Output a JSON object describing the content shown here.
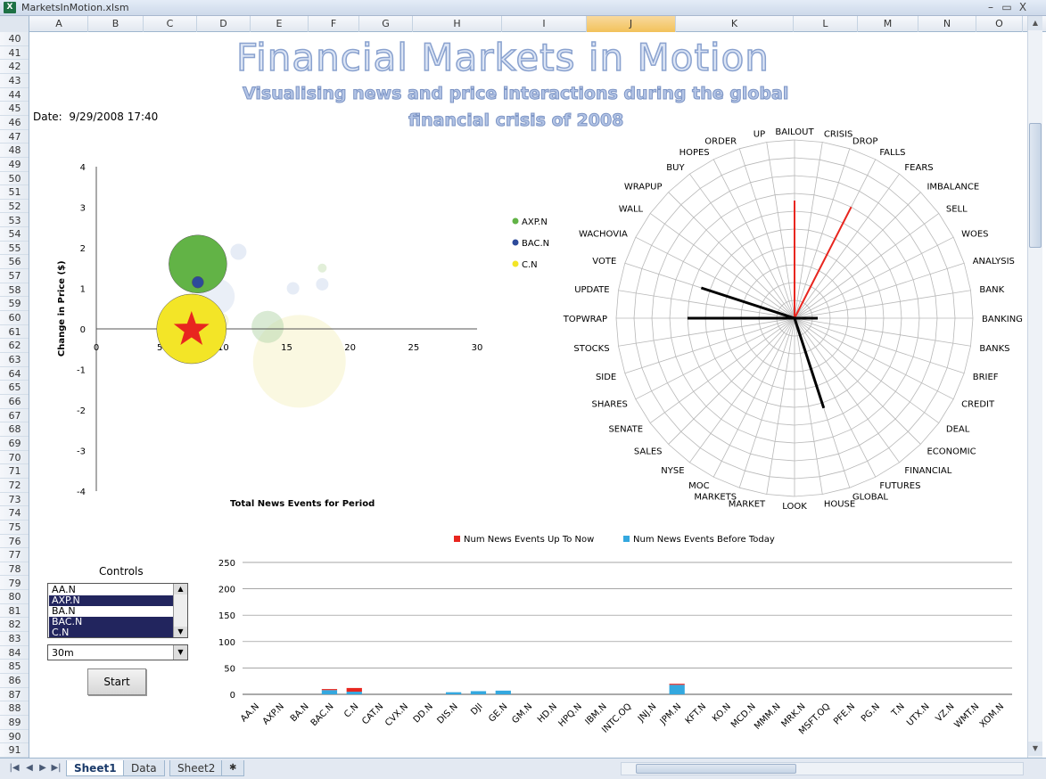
{
  "window": {
    "title": "MarketsInMotion.xlsm",
    "app_icon": "excel-icon",
    "minimize_glyph": "–",
    "restore_glyph": "▭",
    "close_glyph": "X"
  },
  "columns": [
    "A",
    "B",
    "C",
    "D",
    "E",
    "F",
    "G",
    "H",
    "I",
    "J",
    "K",
    "L",
    "M",
    "N",
    "O"
  ],
  "selected_column": "J",
  "rows": [
    "40",
    "41",
    "42",
    "43",
    "44",
    "45",
    "46",
    "47",
    "48",
    "49",
    "50",
    "51",
    "52",
    "53",
    "54",
    "55",
    "56",
    "57",
    "58",
    "59",
    "60",
    "61",
    "62",
    "63",
    "64",
    "65",
    "66",
    "67",
    "68",
    "69",
    "70",
    "71",
    "72",
    "73",
    "74",
    "75",
    "76",
    "77",
    "78",
    "79",
    "80",
    "81",
    "82",
    "83",
    "84",
    "85",
    "86",
    "87",
    "88",
    "89",
    "90",
    "91"
  ],
  "dashboard": {
    "title": "Financial Markets in Motion",
    "subtitle_line1": "Visualising news and price interactions during the global",
    "subtitle_line2": "financial crisis of 2008",
    "date_label": "Date:",
    "date_value": "9/29/2008 17:40"
  },
  "controls": {
    "title": "Controls",
    "tickers": [
      {
        "label": "AA.N",
        "selected": false
      },
      {
        "label": "AXP.N",
        "selected": true
      },
      {
        "label": "BA.N",
        "selected": false
      },
      {
        "label": "BAC.N",
        "selected": true
      },
      {
        "label": "C.N",
        "selected": true
      }
    ],
    "period_value": "30m",
    "start_label": "Start"
  },
  "chart_data": [
    {
      "type": "scatter",
      "title": "",
      "xlabel": "Total News Events for Period",
      "ylabel": "Change in Price ($)",
      "xlim": [
        0,
        30
      ],
      "ylim": [
        -4,
        4
      ],
      "xticks": [
        "0",
        "5",
        "10",
        "15",
        "20",
        "25",
        "30"
      ],
      "yticks": [
        "4",
        "3",
        "2",
        "1",
        "0",
        "-1",
        "-2",
        "-3",
        "-4"
      ],
      "legend": [
        "AXP.N",
        "BAC.N",
        "C.N"
      ],
      "series": [
        {
          "name": "AXP.N",
          "color": "#62b346",
          "x": 8,
          "y": 1.6,
          "size": 25
        },
        {
          "name": "BAC.N",
          "color": "#2d4a9a",
          "x": 8,
          "y": 1.15,
          "size": 5
        },
        {
          "name": "C.N",
          "color": "#f3e527",
          "x": 7.5,
          "y": 0,
          "size": 30
        }
      ]
    },
    {
      "type": "radar",
      "categories": [
        "BAILOUT",
        "CRISIS",
        "DROP",
        "FALLS",
        "FEARS",
        "IMBALANCE",
        "SELL",
        "WOES",
        "ANALYSIS",
        "BANK",
        "BANKING",
        "BANKS",
        "BRIEF",
        "CREDIT",
        "DEAL",
        "ECONOMIC",
        "FINANCIAL",
        "FUTURES",
        "GLOBAL",
        "HOUSE",
        "LOOK",
        "MARKET",
        "MARKETS",
        "MOC",
        "NYSE",
        "SALES",
        "SENATE",
        "SHARES",
        "SIDE",
        "STOCKS",
        "TOPWRAP",
        "UPDATE",
        "VOTE",
        "WACHOVIA",
        "WALL",
        "WRAPUP",
        "BUY",
        "HOPES",
        "ORDER",
        "UP"
      ],
      "series": [
        {
          "name": "Num News Events Up To Now",
          "color": "#e8261f",
          "values": [
            0.66,
            0,
            0,
            0.7,
            0,
            0,
            0,
            0,
            0,
            0,
            0,
            0,
            0,
            0,
            0,
            0,
            0,
            0,
            0,
            0,
            0,
            0,
            0,
            0,
            0,
            0,
            0,
            0,
            0,
            0,
            0,
            0,
            0,
            0,
            0,
            0,
            0,
            0,
            0,
            0
          ]
        },
        {
          "name": "Num News Events Before Today",
          "color": "#000000",
          "values": [
            0,
            0,
            0,
            0,
            0,
            0,
            0,
            0,
            0,
            0,
            0.13,
            0,
            0,
            0,
            0,
            0,
            0,
            0,
            0.53,
            0,
            0,
            0,
            0,
            0,
            0,
            0,
            0,
            0,
            0,
            0,
            0.6,
            0,
            0.55,
            0,
            0,
            0,
            0,
            0,
            0,
            0
          ]
        }
      ]
    },
    {
      "type": "bar",
      "stacked": true,
      "ylim": [
        0,
        250
      ],
      "yticks": [
        "250",
        "200",
        "150",
        "100",
        "50",
        "0"
      ],
      "categories": [
        "AA.N",
        "AXP.N",
        "BA.N",
        "BAC.N",
        "C.N",
        "CAT.N",
        "CVX.N",
        "DD.N",
        "DIS.N",
        "DJI",
        "GE.N",
        "GM.N",
        "HD.N",
        "HPQ.N",
        "IBM.N",
        "INTC.OQ",
        "JNJ.N",
        "JPM.N",
        "KFT.N",
        "KO.N",
        "MCD.N",
        "MMM.N",
        "MRK.N",
        "MSFT.OQ",
        "PFE.N",
        "PG.N",
        "T.N",
        "UTX.N",
        "VZ.N",
        "WMT.N",
        "XOM.N"
      ],
      "series": [
        {
          "name": "Num News Events Before Today",
          "color": "#34a8df",
          "values": [
            0,
            0,
            0,
            8,
            5,
            0,
            0,
            0,
            4,
            6,
            7,
            0,
            0,
            0,
            0,
            0,
            0,
            18,
            0,
            0,
            0,
            0,
            0,
            0,
            0,
            0,
            0,
            0,
            0,
            0,
            0
          ]
        },
        {
          "name": "Num News Events Up To Now",
          "color": "#e8261f",
          "values": [
            0,
            0,
            0,
            2,
            7,
            0,
            0,
            0,
            0,
            0,
            0,
            0,
            0,
            0,
            0,
            0,
            0,
            2,
            0,
            0,
            0,
            0,
            0,
            0,
            0,
            0,
            0,
            0,
            0,
            0,
            0
          ]
        }
      ]
    }
  ],
  "sheet_tabs": [
    "Sheet1",
    "Data",
    "Sheet2"
  ],
  "active_tab": "Sheet1"
}
